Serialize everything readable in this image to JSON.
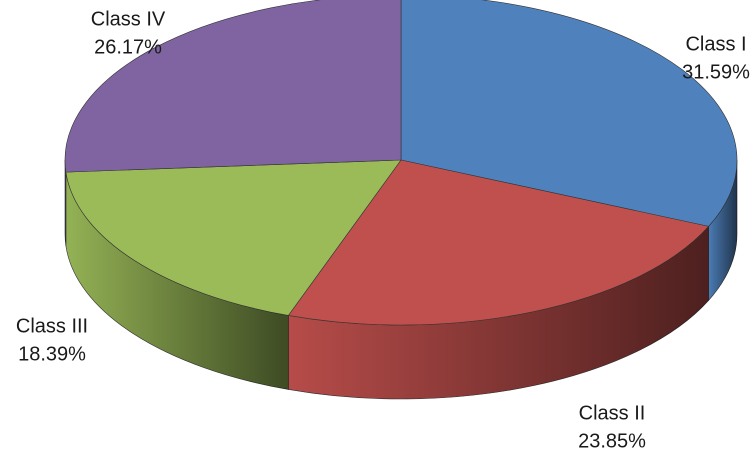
{
  "chart_data": {
    "type": "pie3d",
    "categories": [
      "Class I",
      "Class II",
      "Class III",
      "Class IV"
    ],
    "values": [
      31.59,
      23.85,
      18.39,
      26.17
    ],
    "value_labels": [
      "31.59%",
      "23.85%",
      "18.39%",
      "26.17%"
    ],
    "colors": [
      "#4f81bd",
      "#c0504d",
      "#9bbb59",
      "#8064a2"
    ]
  }
}
